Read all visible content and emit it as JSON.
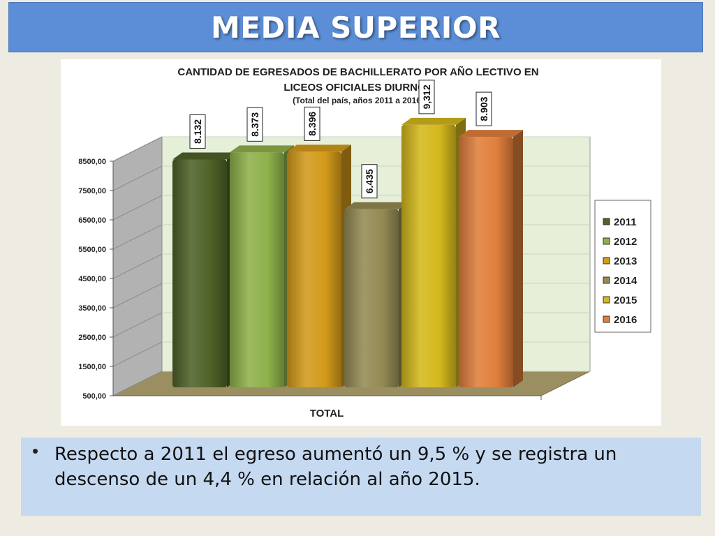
{
  "slide": {
    "title": "MEDIA SUPERIOR",
    "note": "Respecto a 2011 el egreso aumentó  un  9,5 % y se registra un descenso de un 4,4 % en relación al año  2015."
  },
  "chart_data": {
    "type": "bar",
    "title_line1": "CANTIDAD DE EGRESADOS DE BACHILLERATO POR AÑO LECTIVO EN",
    "title_line2": "LICEOS OFICIALES DIURNOS",
    "subtitle": "(Total del país, años 2011 a 2016)",
    "xlabel": "TOTAL",
    "ylabel": "",
    "ylim": [
      500,
      8500
    ],
    "yticks": [
      "500,00",
      "1500,00",
      "2500,00",
      "3500,00",
      "4500,00",
      "5500,00",
      "6500,00",
      "7500,00",
      "8500,00"
    ],
    "categories": [
      "TOTAL"
    ],
    "legend_position": "right",
    "grid": false,
    "series": [
      {
        "name": "2011",
        "value": 8132,
        "label": "8.132",
        "color": "#4f6228"
      },
      {
        "name": "2012",
        "value": 8373,
        "label": "8.373",
        "color": "#8fb14a"
      },
      {
        "name": "2013",
        "value": 8396,
        "label": "8.396",
        "color": "#d39a1b"
      },
      {
        "name": "2014",
        "value": 6435,
        "label": "6.435",
        "color": "#948a54"
      },
      {
        "name": "2015",
        "value": 9312,
        "label": "9,312",
        "color": "#d4b81c"
      },
      {
        "name": "2016",
        "value": 8903,
        "label": "8.903",
        "color": "#e07f3c"
      }
    ]
  }
}
